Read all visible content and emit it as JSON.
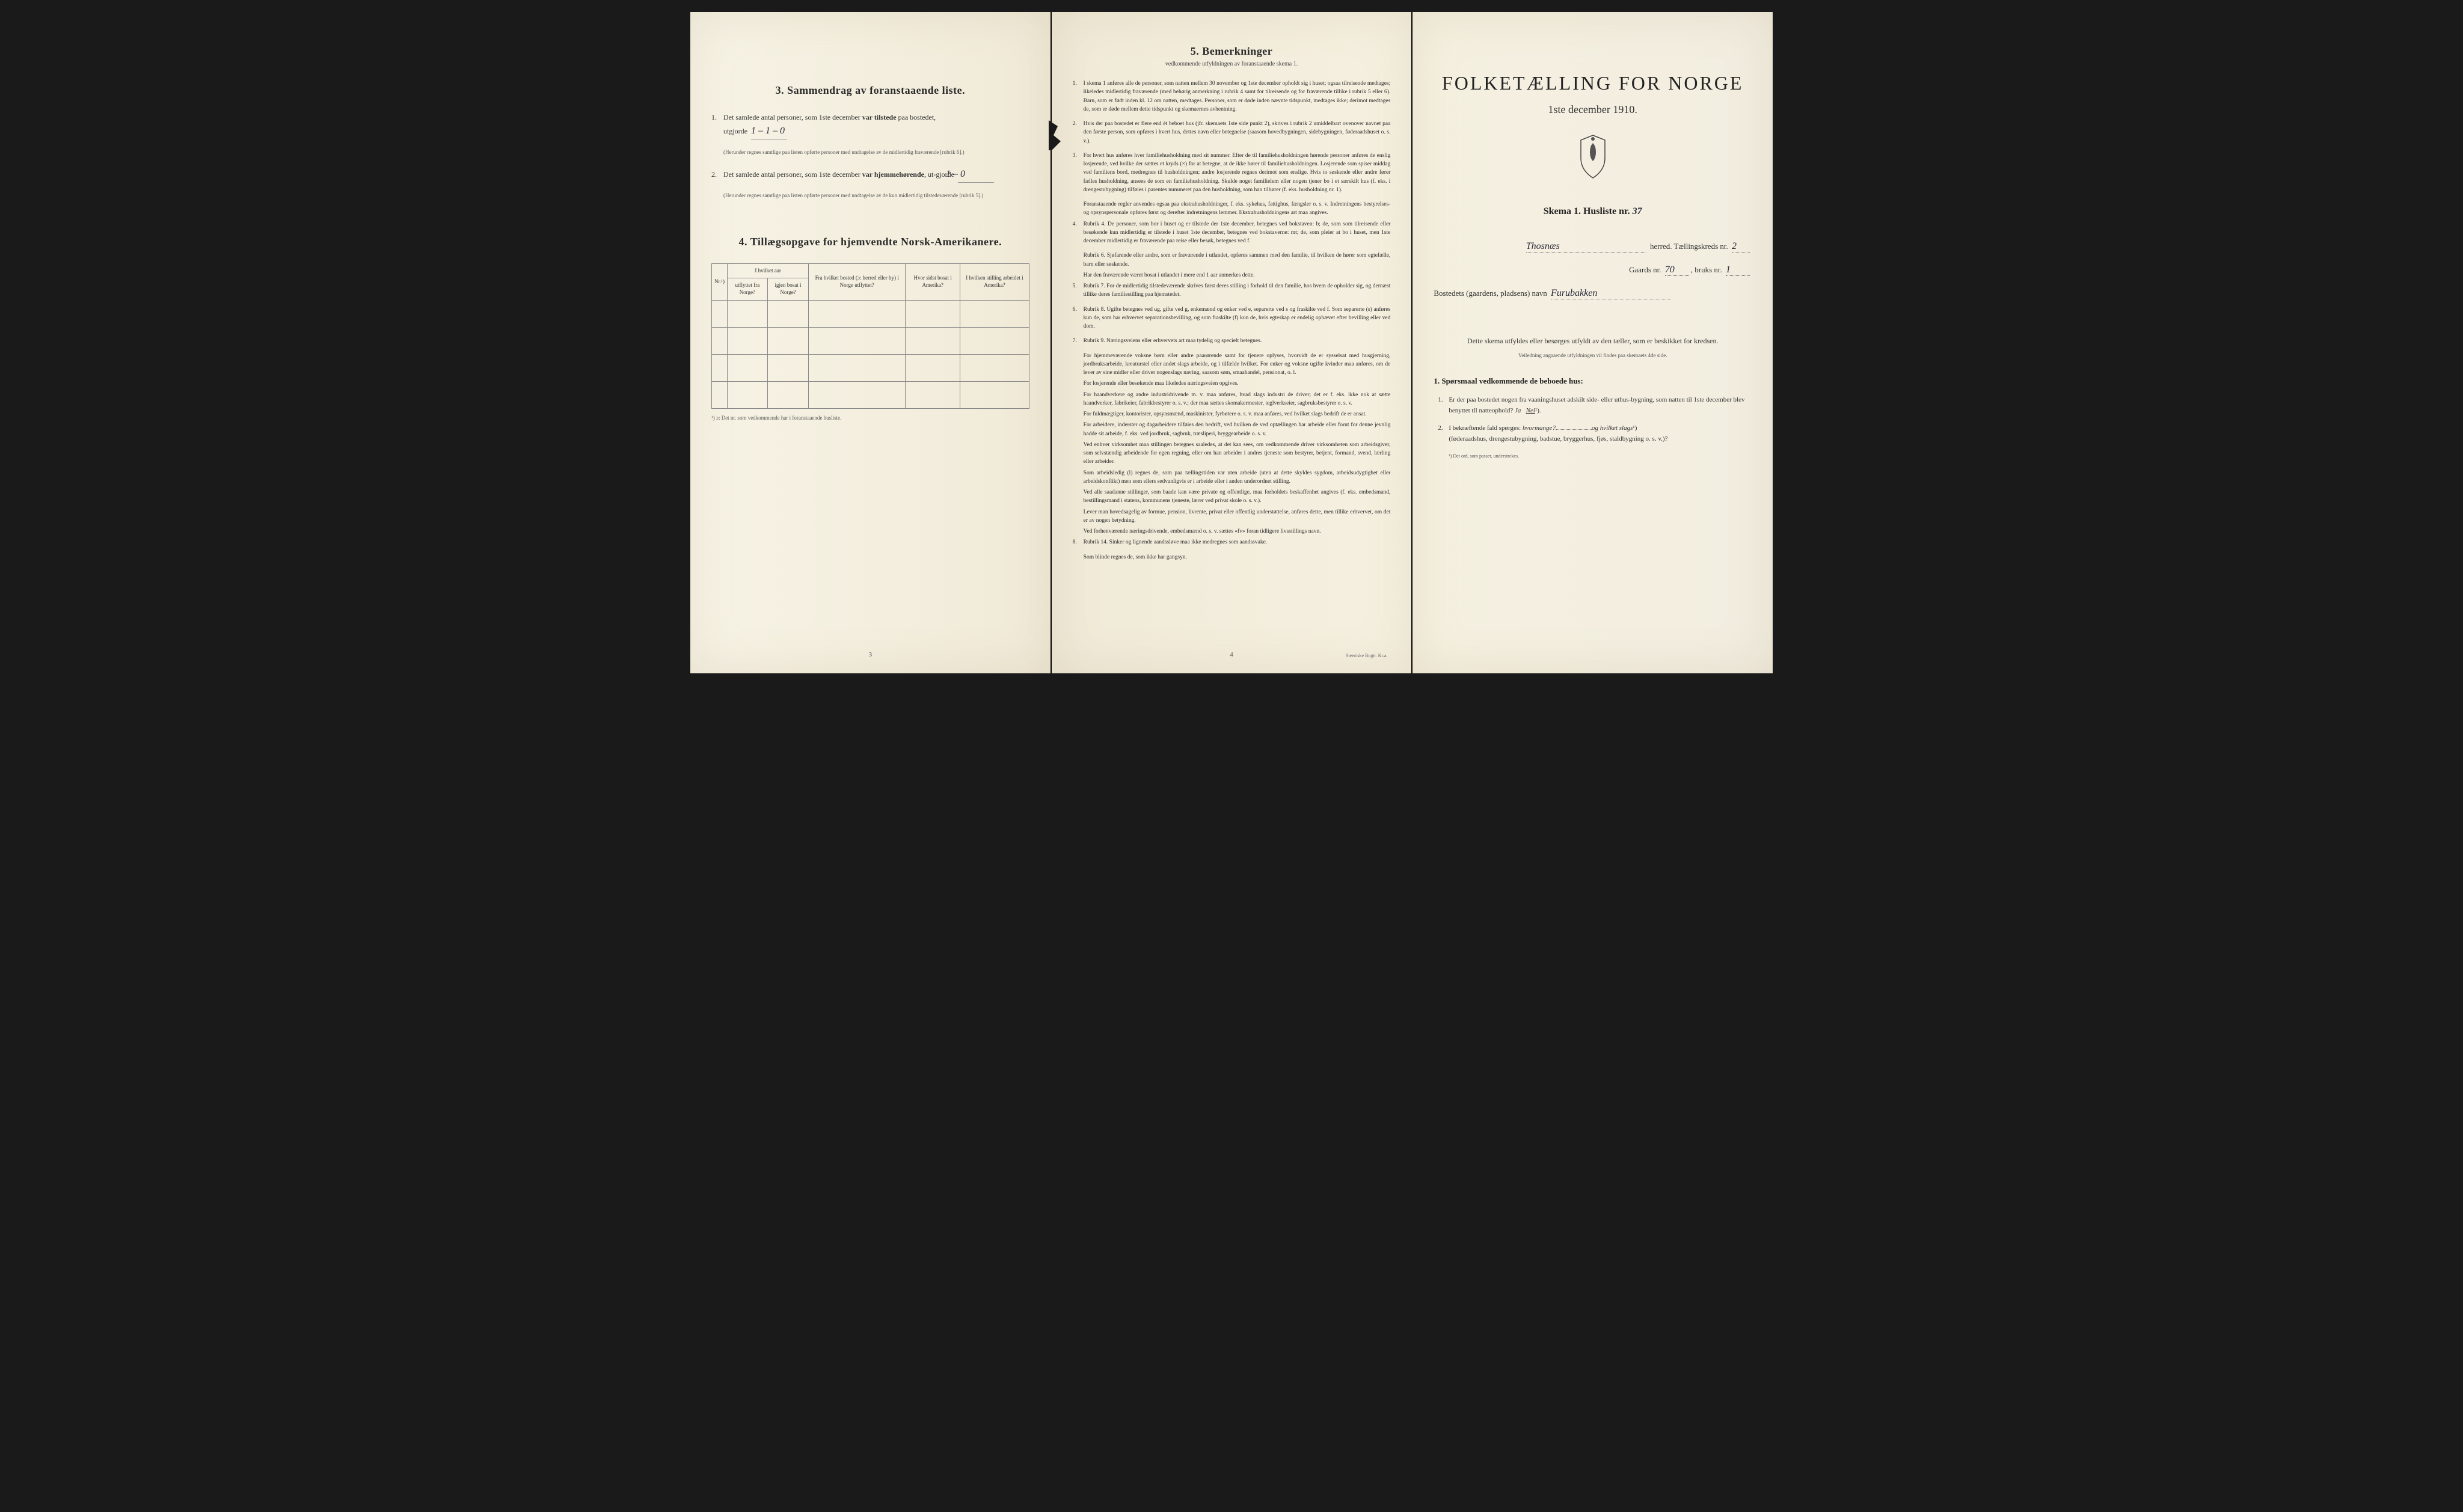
{
  "page1": {
    "section3": {
      "title": "3.  Sammendrag av foranstaaende liste.",
      "item1": {
        "num": "1.",
        "text_a": "Det samlede antal personer, som 1ste december ",
        "text_b": "var tilstede",
        "text_c": " paa bostedet,",
        "text_d": "utgjorde",
        "value": "1 – 1 – 0",
        "note": "(Herunder regnes samtlige paa listen opførte personer med undtagelse av de midlertidig fraværende [rubrik 6].)"
      },
      "item2": {
        "num": "2.",
        "text_a": "Det samlede antal personer, som 1ste december ",
        "text_b": "var hjemmehørende",
        "text_c": ", ut-gjorde",
        "value": "1 – 0",
        "note": "(Herunder regnes samtlige paa listen opførte personer med undtagelse av de kun midlertidig tilstedeværende [rubrik 5].)"
      }
    },
    "section4": {
      "title": "4.  Tillægsopgave for hjemvendte Norsk-Amerikanere.",
      "headers": {
        "col0": "Nr.¹)",
        "col1a": "I hvilket aar",
        "col1b": "utflyttet fra Norge?",
        "col1c": "igjen bosat i Norge?",
        "col2": "Fra hvilket bosted (ɔ: herred eller by) i Norge utflyttet?",
        "col3": "Hvor sidst bosat i Amerika?",
        "col4": "I hvilken stilling arbeidet i Amerika?"
      },
      "note": "¹) ɔ: Det nr. som vedkommende har i foranstaaende husliste."
    },
    "pagenum": "3"
  },
  "page2": {
    "title": "5.  Bemerkninger",
    "subtitle": "vedkommende utfyldningen av foranstaaende skema 1.",
    "items": [
      {
        "num": "1.",
        "text": "I skema 1 anføres alle de personer, som natten mellem 30 november og 1ste december opholdt sig i huset; ogsaa tilreisende medtages; likeledes midlertidig fraværende (med behørig anmerkning i rubrik 4 samt for tilreisende og for fraværende tillike i rubrik 5 eller 6). Barn, som er født inden kl. 12 om natten, medtages. Personer, som er døde inden nævnte tidspunkt, medtages ikke; derimot medtages de, som er døde mellem dette tidspunkt og skemaernes avhentning."
      },
      {
        "num": "2.",
        "text": "Hvis der paa bostedet er flere end ét beboet hus (jfr. skemaets 1ste side punkt 2), skrives i rubrik 2 umiddelbart ovenover navnet paa den første person, som opføres i hvert hus, dettes navn eller betegnelse (saasom hovedbygningen, sidebygningen, føderaadshuset o. s. v.)."
      },
      {
        "num": "3.",
        "text": "For hvert hus anføres hver familiehusholdning med sit nummer. Efter de til familiehusholdningen hørende personer anføres de enslig losjerende, ved hvilke der sættes et kryds (×) for at betegne, at de ikke hører til familiehusholdningen. Losjerende som spiser middag ved familiens bord, medregnes til husholdningen; andre losjerende regnes derimot som enslige. Hvis to søskende eller andre fører fælles husholdning, ansees de som en familiehusholdning. Skulde noget familielem eller nogen tjener bo i et særskilt hus (f. eks. i drengestubygning) tilføies i parentes nummeret paa den husholdning, som han tilhører (f. eks. husholdning nr. 1).",
        "sub": "Foranstaaende regler anvendes ogsaa paa ekstrahusholdninger, f. eks. sykehus, fattighus, fængsler o. s. v. Indretningens bestyrelses- og opsynspersonale opføres først og derefter indretningens lemmer. Ekstrahusholdningens art maa angives."
      },
      {
        "num": "4.",
        "text": "Rubrik 4. De personer, som bor i huset og er tilstede der 1ste december, betegnes ved bokstaven: b; de, som som tilreisende eller besøkende kun midlertidig er tilstede i huset 1ste december, betegnes ved bokstaverne: mt; de, som pleier at bo i huset, men 1ste december midlertidig er fraværende paa reise eller besøk, betegnes ved f.",
        "subs": [
          "Rubrik 6. Sjøfarende eller andre, som er fraværende i utlandet, opføres sammen med den familie, til hvilken de hører som egtefælle, barn eller søskende.",
          "Har den fraværende været bosat i utlandet i mere end 1 aar anmerkes dette."
        ]
      },
      {
        "num": "5.",
        "text": "Rubrik 7. For de midlertidig tilstedeværende skrives først deres stilling i forhold til den familie, hos hvem de opholder sig, og dernæst tillike deres familiestilling paa hjemstedet."
      },
      {
        "num": "6.",
        "text": "Rubrik 8. Ugifte betegnes ved ug, gifte ved g, enkemænd og enker ved e, separerte ved s og fraskilte ved f. Som separerte (s) anføres kun de, som har erhvervet separationsbevilling, og som fraskilte (f) kun de, hvis egteskap er endelig ophævet efter bevilling eller ved dom."
      },
      {
        "num": "7.",
        "text": "Rubrik 9. Næringsveiens eller erhvervets art maa tydelig og specielt betegnes.",
        "subs": [
          "For hjemmeværende voksne børn eller andre paarørende samt for tjenere oplyses, hvorvidt de er sysselsat med husgjerning, jordbruksarbeide, kreaturstel eller andet slags arbeide, og i tilfælde hvilket. For enker og voksne ugifte kvinder maa anføres, om de lever av sine midler eller driver nogenslags næring, saasom søm, smaahandel, pensionat, o. l.",
          "For losjerende eller besøkende maa likeledes næringsveien opgives.",
          "For haandverkere og andre industridrivende m. v. maa anføres, hvad slags industri de driver; det er f. eks. ikke nok at sætte haandverker, fabrikeier, fabrikbestyrer o. s. v.; der maa sættes skomakermester, teglverkseier, sagbruksbestyrer o. s. v.",
          "For fuldmægtiger, kontorister, opsynsmænd, maskinister, fyrbøtere o. s. v. maa anføres, ved hvilket slags bedrift de er ansat.",
          "For arbeidere, inderster og dagarbeidere tilføies den bedrift, ved hvilken de ved optællingen har arbeide eller forut for denne jevnlig hadde sit arbeide, f. eks. ved jordbruk, sagbruk, træsliperi, bryggearbeide o. s. v.",
          "Ved enhver virksomhet maa stillingen betegnes saaledes, at det kan sees, om vedkommende driver virksomheten som arbeidsgiver, som selvstændig arbeidende for egen regning, eller om han arbeider i andres tjeneste som bestyrer, betjent, formand, svend, lærling eller arbeider.",
          "Som arbeidsledig (l) regnes de, som paa tællingstiden var uten arbeide (uten at dette skyldes sygdom, arbeidsudygtighet eller arbeidskonflikt) men som ellers sedvanligvis er i arbeide eller i anden underordnet stilling.",
          "Ved alle saadanne stillinger, som baade kan være private og offentlige, maa forholdets beskaffenhet angives (f. eks. embedsmand, bestillingsmand i statens, kommunens tjeneste, lærer ved privat skole o. s. v.).",
          "Lever man hovedsagelig av formue, pension, livrente, privat eller offentlig understøttelse, anføres dette, men tillike erhvervet, om det er av nogen betydning.",
          "Ved forhenværende næringsdrivende, embedsmænd o. s. v. sættes «fv» foran tidligere livsstillings navn."
        ]
      },
      {
        "num": "8.",
        "text": "Rubrik 14. Sinker og lignende aandssløve maa ikke medregnes som aandssvake.",
        "sub": "Som blinde regnes de, som ikke har gangsyn."
      }
    ],
    "pagenum": "4",
    "printer": "Steen'ske Bogtr. Kr.a."
  },
  "page3": {
    "main_title": "FOLKETÆLLING FOR NORGE",
    "date": "1ste december 1910.",
    "skema": "Skema 1.  Husliste nr.",
    "skema_val": "37",
    "herred_label": "herred.  Tællingskreds nr.",
    "herred_val": "Thosnæs",
    "kreds_val": "2",
    "gaards_label": "Gaards nr.",
    "gaards_val": "70",
    "bruks_label": "bruks nr.",
    "bruks_val": "1",
    "bosted_label": "Bostedets (gaardens, pladsens) navn",
    "bosted_val": "Furubakken",
    "center_para": "Dette skema utfyldes eller besørges utfyldt av den tæller, som er beskikket for kredsen.",
    "center_small": "Veiledning angaaende utfyldningen vil findes paa skemaets 4de side.",
    "q_title": "1. Spørsmaal vedkommende de beboede hus:",
    "q1": {
      "num": "1.",
      "text": "Er der paa bostedet nogen fra vaaningshuset adskilt side- eller uthus-bygning, som natten til 1ste december blev benyttet til natteophold?   ",
      "ja": "Ja",
      "nei": "Nei",
      "sup": "¹)."
    },
    "q2": {
      "num": "2.",
      "text": "I bekræftende fald spørges: ",
      "hvor": "hvormange?",
      "og": "og hvilket slags",
      "sup": "¹)",
      "text2": "(føderaadshus, drengestubygning, badstue, bryggerhus, fjøs, staldbygning o. s. v.)?"
    },
    "footnote": "¹) Det ord, som passer, understrekes."
  }
}
